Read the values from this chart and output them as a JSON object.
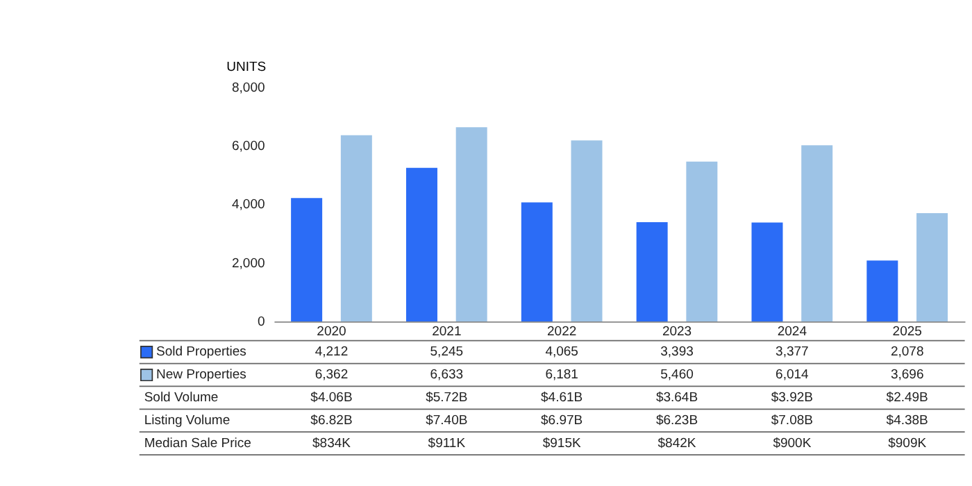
{
  "chart_data": {
    "type": "bar",
    "ylabel": "UNITS",
    "categories": [
      "2020",
      "2021",
      "2022",
      "2023",
      "2024",
      "2025"
    ],
    "series": [
      {
        "name": "Sold Properties",
        "color": "#2b6cf6",
        "values": [
          4212,
          5245,
          4065,
          3393,
          3377,
          2078
        ],
        "value_labels": [
          "4,212",
          "5,245",
          "4,065",
          "3,393",
          "3,377",
          "2,078"
        ]
      },
      {
        "name": "New Properties",
        "color": "#9dc3e6",
        "values": [
          6362,
          6633,
          6181,
          5460,
          6014,
          3696
        ],
        "value_labels": [
          "6,362",
          "6,633",
          "6,181",
          "5,460",
          "6,014",
          "3,696"
        ]
      }
    ],
    "ylim": [
      0,
      8000
    ],
    "yticks": [
      0,
      {
        "value": 2000,
        "label": "2,000"
      },
      {
        "value": 4000,
        "label": "4,000"
      },
      {
        "value": 6000,
        "label": "6,000"
      },
      {
        "value": 8000,
        "label": "8,000"
      }
    ],
    "grid": false,
    "legend": "bottom",
    "annotations": [
      "Sold Volume",
      "$4.06B",
      "$5.72B",
      "$4.61B",
      "$3.64B",
      "$3.92B",
      "$2.49B",
      "Listing Volume",
      "$6.82B",
      "$7.40B",
      "$6.97B",
      "$6.23B",
      "$7.08B",
      "$4.38B",
      "Median Sale Price",
      "$834K",
      "$911K",
      "$915K",
      "$842K",
      "$900K",
      "$909K"
    ]
  }
}
